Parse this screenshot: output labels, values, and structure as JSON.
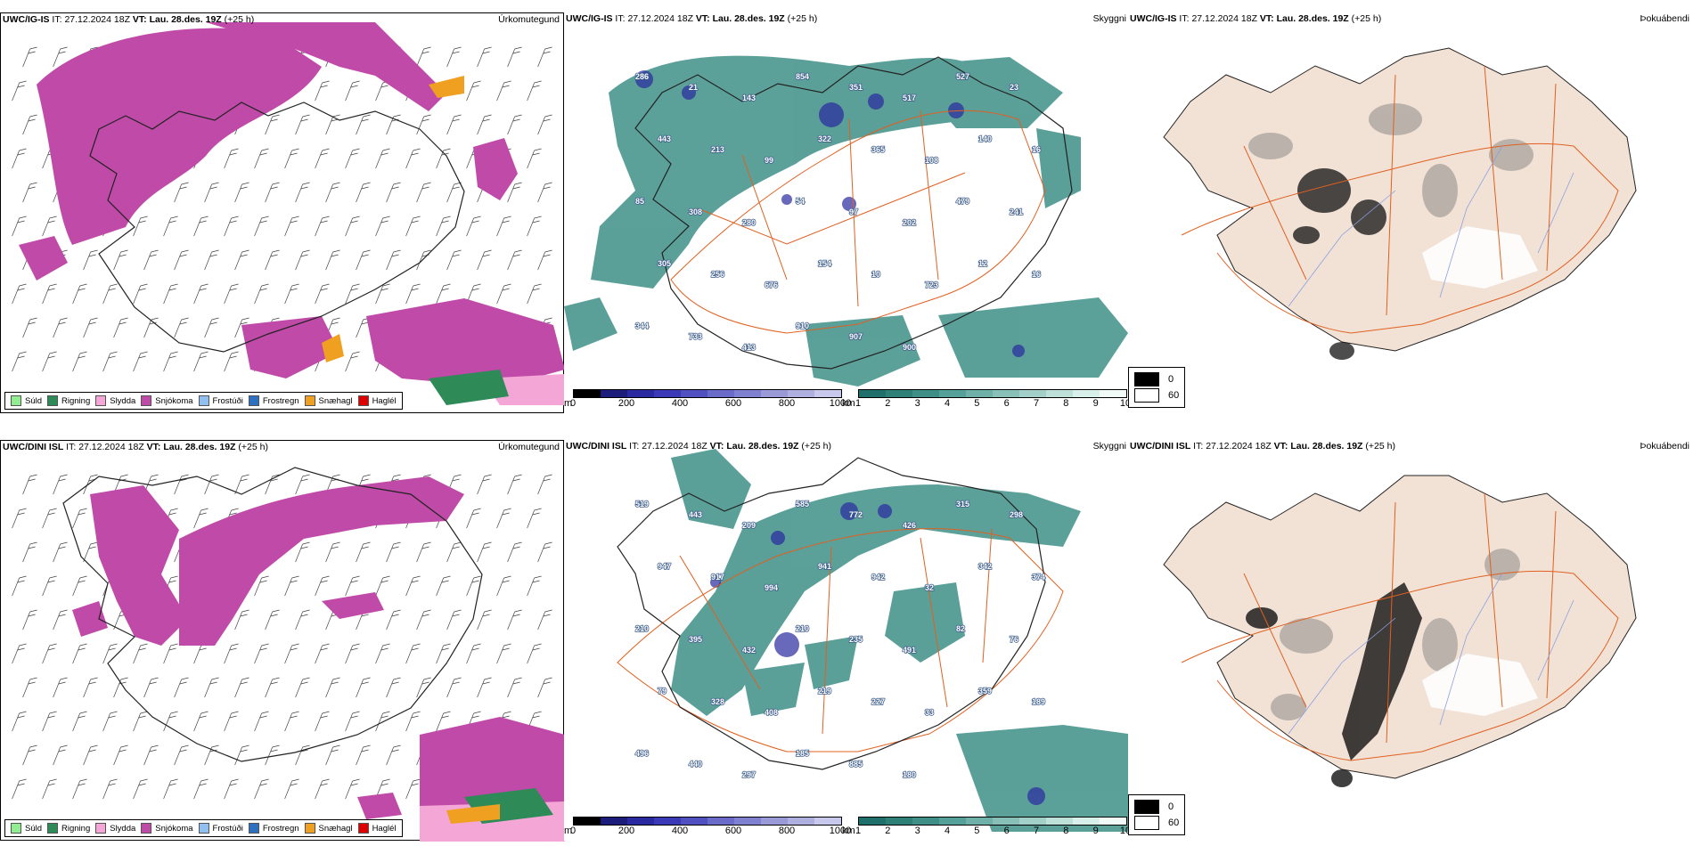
{
  "rows": [
    {
      "model": "UWC/IG-IS",
      "it_label": "IT:",
      "it_value": "27.12.2024 18Z",
      "vt_label": "VT:",
      "vt_value": "Lau. 28.des. 19Z",
      "lead": "(+25 h)",
      "precip_title": "Úrkomutegund",
      "vis_title": "Skyggni",
      "fog_title": "Þokuábendi",
      "peaks": [
        "286",
        "21",
        "143",
        "854",
        "351",
        "517",
        "527",
        "23",
        "443",
        "213",
        "99",
        "322",
        "365",
        "108",
        "140",
        "16",
        "85",
        "308",
        "280",
        "54",
        "97",
        "202",
        "479",
        "241",
        "305",
        "256",
        "676",
        "154",
        "10",
        "723",
        "12",
        "16",
        "344",
        "733",
        "413",
        "910",
        "907",
        "900"
      ]
    },
    {
      "model": "UWC/DINI ISL",
      "it_label": "IT:",
      "it_value": "27.12.2024 18Z",
      "vt_label": "VT:",
      "vt_value": "Lau. 28.des. 19Z",
      "lead": "(+25 h)",
      "precip_title": "Úrkomutegund",
      "vis_title": "Skyggni",
      "fog_title": "Þokuábendi",
      "peaks": [
        "519",
        "443",
        "209",
        "585",
        "772",
        "426",
        "315",
        "298",
        "947",
        "917",
        "994",
        "941",
        "942",
        "32",
        "342",
        "374",
        "210",
        "395",
        "432",
        "210",
        "235",
        "491",
        "82",
        "76",
        "79",
        "328",
        "408",
        "219",
        "227",
        "33",
        "359",
        "189",
        "496",
        "440",
        "297",
        "185",
        "885",
        "180"
      ]
    }
  ],
  "precip_legend": [
    {
      "label": "Súld",
      "color": "#90ee90"
    },
    {
      "label": "Rigning",
      "color": "#2e8b57"
    },
    {
      "label": "Slydda",
      "color": "#f4a6d7"
    },
    {
      "label": "Snjókoma",
      "color": "#c04aa8"
    },
    {
      "label": "Frostúði",
      "color": "#90bff0"
    },
    {
      "label": "Frostregn",
      "color": "#2f6fbf"
    },
    {
      "label": "Snæhagl",
      "color": "#f0a020"
    },
    {
      "label": "Haglél",
      "color": "#e00000"
    }
  ],
  "elevation_bar": {
    "unit": "m",
    "ticks": [
      "0",
      "200",
      "400",
      "600",
      "800",
      "1000"
    ],
    "colors": [
      "#000000",
      "#1c1c7a",
      "#2a2aa0",
      "#3a3ab8",
      "#5050c0",
      "#6a6ac8",
      "#8080d0",
      "#9a9ad8",
      "#b0b0e0",
      "#c8c8ec"
    ]
  },
  "visibility_bar": {
    "unit": "km",
    "ticks": [
      "1",
      "2",
      "3",
      "4",
      "5",
      "6",
      "7",
      "8",
      "9",
      "10"
    ],
    "colors": [
      "#1f6f6a",
      "#2e7f78",
      "#3f8f88",
      "#55a098",
      "#6fb0a8",
      "#88c0b8",
      "#a2d0c8",
      "#bde0d8",
      "#d8efea",
      "#f2faf8"
    ]
  },
  "fog_legend": [
    {
      "label": "0",
      "color": "#000000"
    },
    {
      "label": "60",
      "color": "#ffffff"
    }
  ],
  "colors": {
    "snow": "#c04aa8",
    "rain": "#2e8b57",
    "sleet": "#f4a6d7",
    "ice_pellets": "#f0a020",
    "teal": "#3f8f88",
    "land": "#f2e2d6",
    "road": "#e06020",
    "river": "#8aa0e0",
    "elev": "#2a2aa0"
  }
}
